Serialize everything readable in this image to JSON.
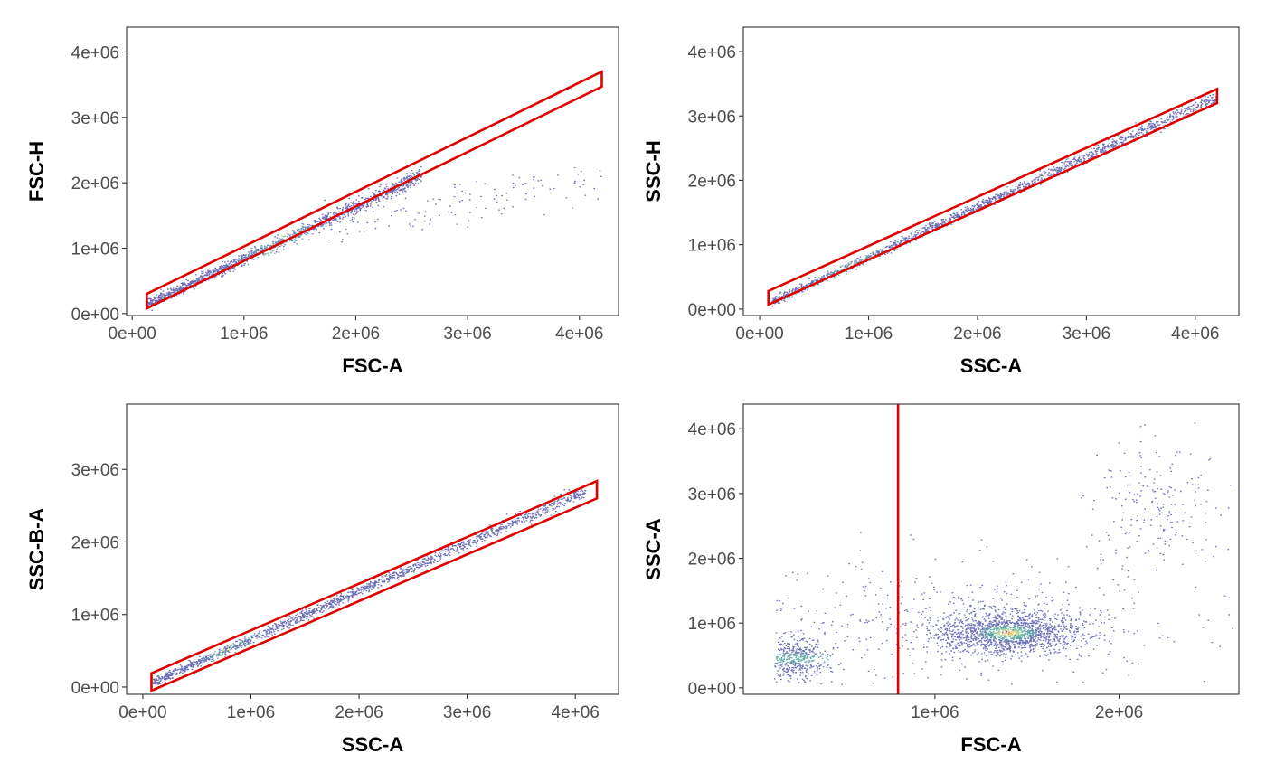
{
  "colors": {
    "gate": "#e00000",
    "density_low": "#6a6fb8",
    "density_mid": "#5fb7a5",
    "density_high": "#f2e58a",
    "density_peak": "#e0402f"
  },
  "chart_data": [
    {
      "type": "scatter",
      "id": "p1",
      "xlabel": "FSC-A",
      "ylabel": "FSC-H",
      "xlim": [
        -50000,
        4350000
      ],
      "ylim": [
        -30000,
        4380000
      ],
      "xticks": [
        0,
        1000000,
        2000000,
        3000000,
        4000000
      ],
      "xtick_labels": [
        "0e+00",
        "1e+06",
        "2e+06",
        "3e+06",
        "4e+06"
      ],
      "yticks": [
        0,
        1000000,
        2000000,
        3000000,
        4000000
      ],
      "ytick_labels": [
        "0e+00",
        "1e+06",
        "2e+06",
        "3e+06",
        "4e+06"
      ],
      "clusters": [
        {
          "x_range": [
            130000,
            2600000
          ],
          "slope": 0.8,
          "intercept": 30000,
          "spread": 60000,
          "n": 1400
        },
        {
          "x_range": [
            1700000,
            4200000
          ],
          "slope": 0.3,
          "intercept": 800000,
          "spread": 230000,
          "n": 130
        }
      ],
      "hot_zone": [
        1000000,
        1600000
      ],
      "gate": [
        [
          130000,
          300000
        ],
        [
          4200000,
          3700000
        ],
        [
          4200000,
          3470000
        ],
        [
          130000,
          80000
        ]
      ]
    },
    {
      "type": "scatter",
      "id": "p2",
      "xlabel": "SSC-A",
      "ylabel": "SSC-H",
      "xlim": [
        -150000,
        4400000
      ],
      "ylim": [
        -100000,
        4380000
      ],
      "xticks": [
        0,
        1000000,
        2000000,
        3000000,
        4000000
      ],
      "xtick_labels": [
        "0e+00",
        "1e+06",
        "2e+06",
        "3e+06",
        "4e+06"
      ],
      "yticks": [
        0,
        1000000,
        2000000,
        3000000,
        4000000
      ],
      "ytick_labels": [
        "0e+00",
        "1e+06",
        "2e+06",
        "3e+06",
        "4e+06"
      ],
      "clusters": [
        {
          "x_range": [
            120000,
            4200000
          ],
          "slope": 0.78,
          "intercept": 20000,
          "spread": 50000,
          "n": 1500
        }
      ],
      "hot_zone": [
        600000,
        1100000
      ],
      "gate": [
        [
          80000,
          280000
        ],
        [
          4200000,
          3420000
        ],
        [
          4200000,
          3200000
        ],
        [
          80000,
          70000
        ]
      ]
    },
    {
      "type": "scatter",
      "id": "p3",
      "xlabel": "SSC-A",
      "ylabel": "SSC-B-A",
      "xlim": [
        -150000,
        4400000
      ],
      "ylim": [
        -100000,
        3900000
      ],
      "xticks": [
        0,
        1000000,
        2000000,
        3000000,
        4000000
      ],
      "xtick_labels": [
        "0e+00",
        "1e+06",
        "2e+06",
        "3e+06",
        "4e+06"
      ],
      "yticks": [
        0,
        1000000,
        2000000,
        3000000
      ],
      "ytick_labels": [
        "0e+00",
        "1e+06",
        "2e+06",
        "3e+06"
      ],
      "clusters": [
        {
          "x_range": [
            100000,
            4100000
          ],
          "slope": 0.66,
          "intercept": 0,
          "spread": 45000,
          "n": 1500
        }
      ],
      "hot_zone": [
        600000,
        1000000
      ],
      "gate": [
        [
          80000,
          190000
        ],
        [
          4200000,
          2840000
        ],
        [
          4200000,
          2600000
        ],
        [
          80000,
          -50000
        ]
      ]
    },
    {
      "type": "scatter",
      "id": "p4",
      "xlabel": "FSC-A",
      "ylabel": "SSC-A",
      "xlim": [
        -40000,
        2650000
      ],
      "ylim": [
        -100000,
        4380000
      ],
      "xticks": [
        1000000,
        2000000
      ],
      "xtick_labels": [
        "1e+06",
        "2e+06"
      ],
      "yticks": [
        0,
        1000000,
        2000000,
        3000000,
        4000000
      ],
      "ytick_labels": [
        "0e+00",
        "1e+06",
        "2e+06",
        "3e+06",
        "4e+06"
      ],
      "blobs": [
        {
          "cx": 1400000,
          "cy": 850000,
          "sx": 200000,
          "sy": 160000,
          "n": 1500
        },
        {
          "cx": 250000,
          "cy": 450000,
          "sx": 80000,
          "sy": 170000,
          "n": 450
        },
        {
          "cx": 2200000,
          "cy": 2800000,
          "sx": 170000,
          "sy": 480000,
          "n": 190
        },
        {
          "cx": 1100000,
          "cy": 1000000,
          "sx": 700000,
          "sy": 500000,
          "n": 520
        }
      ],
      "hot_blob": [
        1400000,
        850000
      ],
      "vline_x": 800000
    }
  ]
}
